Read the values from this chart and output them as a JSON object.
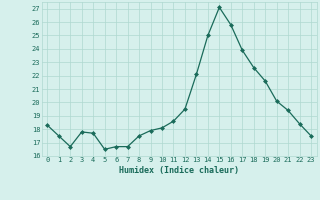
{
  "x": [
    0,
    1,
    2,
    3,
    4,
    5,
    6,
    7,
    8,
    9,
    10,
    11,
    12,
    13,
    14,
    15,
    16,
    17,
    18,
    19,
    20,
    21,
    22,
    23
  ],
  "y": [
    18.3,
    17.5,
    16.7,
    17.8,
    17.7,
    16.5,
    16.7,
    16.7,
    17.5,
    17.9,
    18.1,
    18.6,
    19.5,
    22.1,
    25.0,
    27.1,
    25.8,
    23.9,
    22.6,
    21.6,
    20.1,
    19.4,
    18.4,
    17.5
  ],
  "xlabel": "Humidex (Indice chaleur)",
  "ylim": [
    16,
    27.5
  ],
  "yticks": [
    16,
    17,
    18,
    19,
    20,
    21,
    22,
    23,
    24,
    25,
    26,
    27
  ],
  "line_color": "#1a6b5a",
  "marker_color": "#1a6b5a",
  "bg_color": "#d6f0ec",
  "grid_color": "#afd8d0",
  "tick_color": "#1a6b5a",
  "font_family": "monospace"
}
